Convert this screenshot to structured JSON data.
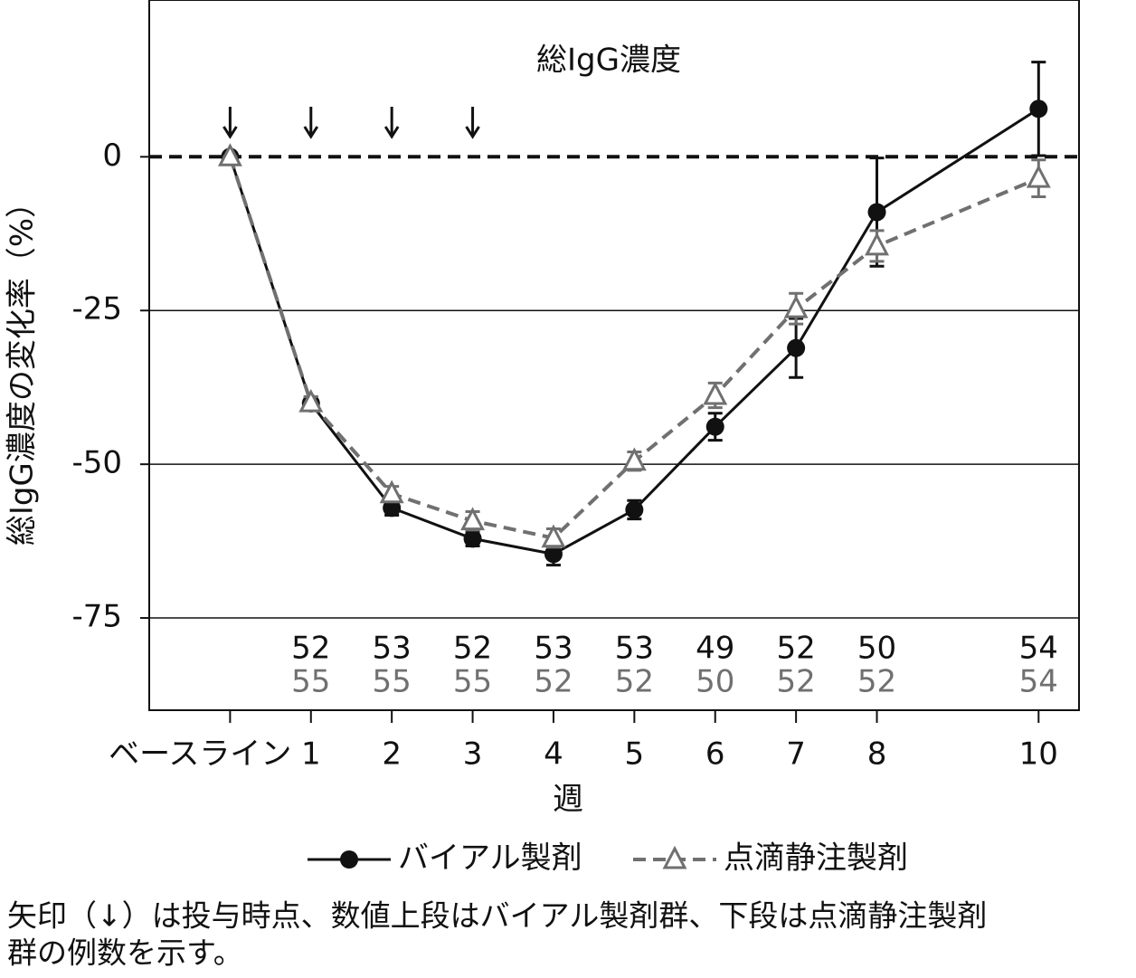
{
  "chart_data": {
    "type": "line",
    "title": "総IgG濃度",
    "y_label": "総IgG濃度の変化率（%）",
    "x_label": "週",
    "x": [
      0,
      1,
      2,
      3,
      4,
      5,
      6,
      7,
      8,
      10
    ],
    "xlim": [
      -1,
      10.5
    ],
    "xticks": [
      {
        "value": 0,
        "label": "ベースライン"
      },
      1,
      2,
      3,
      4,
      5,
      6,
      7,
      8,
      10
    ],
    "ylim": [
      -90,
      25.5
    ],
    "yticks": [
      0,
      -25,
      -50,
      -75
    ],
    "grid": true,
    "reference_line": 0,
    "dose_weeks": [
      0,
      1,
      2,
      3
    ],
    "series": [
      {
        "name": "バイアル製剤",
        "color": "#111111",
        "style": "solid",
        "marker": "circle",
        "values": [
          0,
          -40.1,
          -57.1,
          -62.1,
          -64.6,
          -57.4,
          -43.9,
          -31.1,
          -9,
          7.8
        ],
        "errors": [
          0,
          1,
          1.2,
          1.2,
          1.8,
          1.5,
          2.2,
          4.8,
          8.8,
          7.6
        ],
        "counts": [
          null,
          52,
          53,
          52,
          53,
          53,
          49,
          52,
          50,
          54
        ]
      },
      {
        "name": "点滴静注製剤",
        "color": "#707070",
        "style": "dashed",
        "marker": "triangle",
        "values": [
          0,
          -40,
          -54.8,
          -59.2,
          -62,
          -49.5,
          -38.8,
          -24.7,
          -14.5,
          -3.5
        ],
        "errors": [
          0,
          1,
          1.2,
          1.5,
          1.5,
          1.5,
          2,
          2.5,
          2.5,
          3
        ],
        "counts": [
          null,
          55,
          55,
          55,
          52,
          52,
          50,
          52,
          52,
          54
        ]
      }
    ],
    "footnote": [
      "矢印（↓）は投与時点、数値上段はバイアル製剤群、下段は点滴静注製剤",
      "群の例数を示す。"
    ]
  }
}
